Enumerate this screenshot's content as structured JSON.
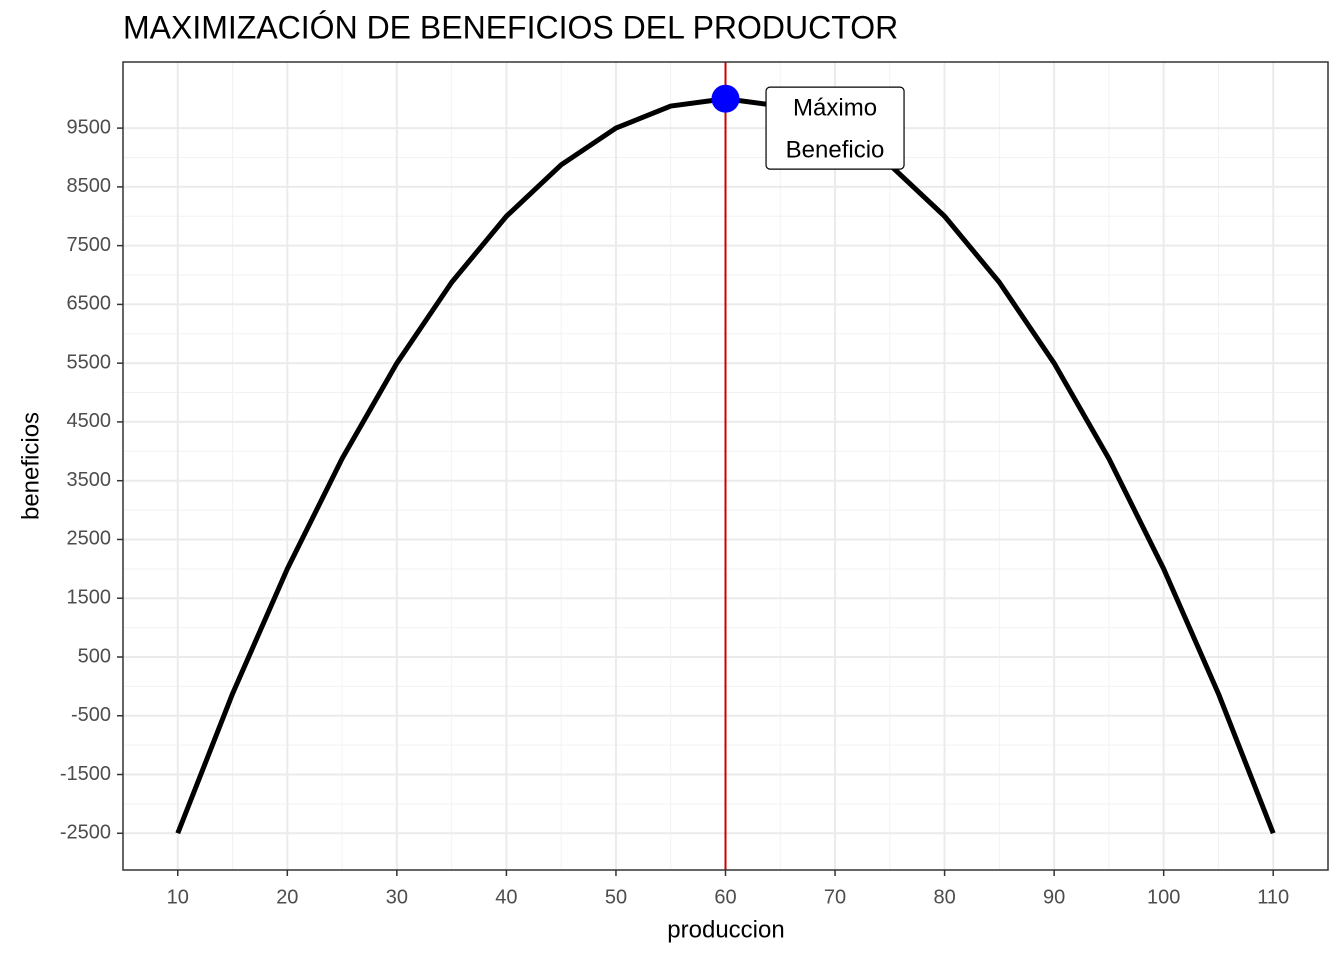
{
  "chart_data": {
    "type": "line",
    "title": "MAXIMIZACIÓN DE BENEFICIOS DEL PRODUCTOR",
    "x_label": "produccion",
    "y_label": "beneficios",
    "x": [
      10,
      15,
      20,
      25,
      30,
      35,
      40,
      45,
      50,
      55,
      60,
      65,
      70,
      75,
      80,
      85,
      90,
      95,
      100,
      105,
      110
    ],
    "series": [
      {
        "color": "#000000",
        "values": [
          -2500,
          -125,
          2000,
          3875,
          5500,
          6875,
          8000,
          8875,
          9500,
          9875,
          10000,
          9875,
          9500,
          8875,
          8000,
          6875,
          5500,
          3875,
          2000,
          -125,
          -2500
        ]
      }
    ],
    "vline": {
      "x": 60,
      "color": "#cc0000"
    },
    "point": {
      "x": 60,
      "y": 10000,
      "color": "#0000ff"
    },
    "annotation": {
      "lines": [
        "Máximo",
        "Beneficio"
      ],
      "x": 70,
      "y": 9500
    },
    "xlim": [
      5,
      115
    ],
    "xticks": [
      10,
      20,
      30,
      40,
      50,
      60,
      70,
      80,
      90,
      100,
      110
    ],
    "ylim": [
      -3125,
      10625
    ],
    "yticks": [
      -2500,
      -1500,
      -500,
      500,
      1500,
      2500,
      3500,
      4500,
      5500,
      6500,
      7500,
      8500,
      9500
    ],
    "grid": true,
    "minor_grid": true
  }
}
